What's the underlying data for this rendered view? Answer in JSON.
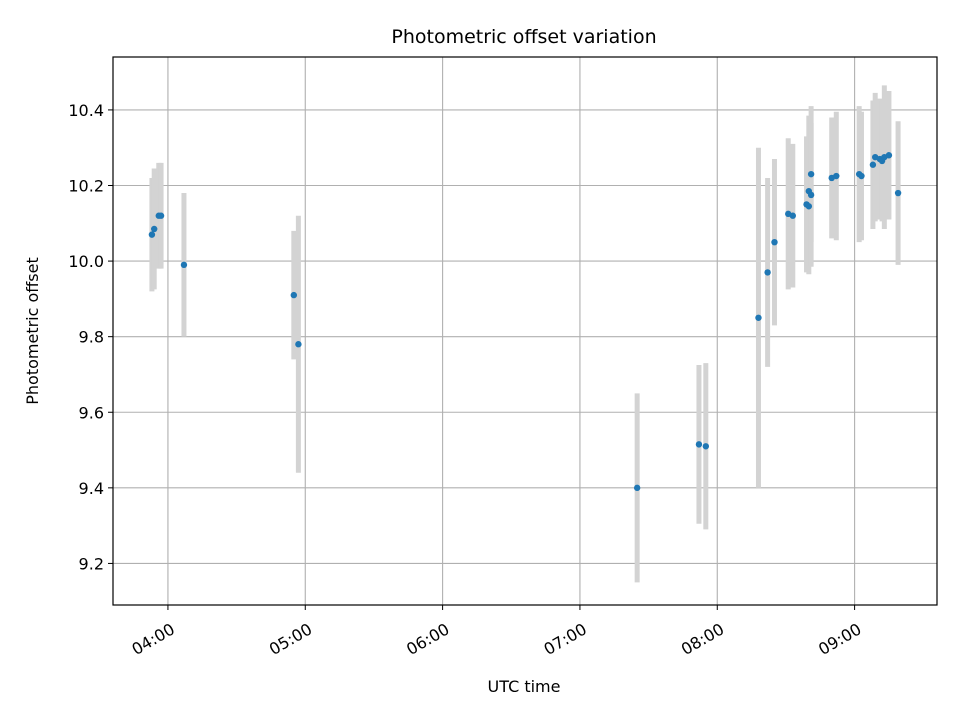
{
  "chart_data": {
    "type": "scatter",
    "title": "Photometric offset variation",
    "xlabel": "UTC time",
    "ylabel": "Photometric offset",
    "x_ticks": [
      {
        "t": "04:00",
        "label": "04:00"
      },
      {
        "t": "05:00",
        "label": "05:00"
      },
      {
        "t": "06:00",
        "label": "06:00"
      },
      {
        "t": "07:00",
        "label": "07:00"
      },
      {
        "t": "08:00",
        "label": "08:00"
      },
      {
        "t": "09:00",
        "label": "09:00"
      }
    ],
    "xlim": [
      "03:36",
      "09:36"
    ],
    "y_ticks": [
      9.2,
      9.4,
      9.6,
      9.8,
      10.0,
      10.2,
      10.4
    ],
    "ylim": [
      9.09,
      10.54
    ],
    "grid": true,
    "colors": {
      "point": "#1f77b4",
      "errorbar": "#d3d3d3",
      "grid": "#b0b0b0"
    },
    "points": [
      {
        "t": "03:53",
        "y": 10.07,
        "err": 0.15
      },
      {
        "t": "03:54",
        "y": 10.085,
        "err": 0.16
      },
      {
        "t": "03:56",
        "y": 10.12,
        "err": 0.14
      },
      {
        "t": "03:57",
        "y": 10.12,
        "err": 0.14
      },
      {
        "t": "04:07",
        "y": 9.99,
        "err": 0.19
      },
      {
        "t": "04:55",
        "y": 9.91,
        "err": 0.17
      },
      {
        "t": "04:57",
        "y": 9.78,
        "err": 0.34
      },
      {
        "t": "07:25",
        "y": 9.4,
        "err": 0.25
      },
      {
        "t": "07:52",
        "y": 9.515,
        "err": 0.21
      },
      {
        "t": "07:55",
        "y": 9.51,
        "err": 0.22
      },
      {
        "t": "08:18",
        "y": 9.85,
        "err": 0.45
      },
      {
        "t": "08:22",
        "y": 9.97,
        "err": 0.25
      },
      {
        "t": "08:25",
        "y": 10.05,
        "err": 0.22
      },
      {
        "t": "08:31",
        "y": 10.125,
        "err": 0.2
      },
      {
        "t": "08:33",
        "y": 10.12,
        "err": 0.19
      },
      {
        "t": "08:39",
        "y": 10.15,
        "err": 0.18
      },
      {
        "t": "08:40",
        "y": 10.145,
        "err": 0.18
      },
      {
        "t": "08:40",
        "y": 10.185,
        "err": 0.2
      },
      {
        "t": "08:41",
        "y": 10.175,
        "err": 0.19
      },
      {
        "t": "08:41",
        "y": 10.23,
        "err": 0.18
      },
      {
        "t": "08:50",
        "y": 10.22,
        "err": 0.16
      },
      {
        "t": "08:52",
        "y": 10.225,
        "err": 0.17
      },
      {
        "t": "09:02",
        "y": 10.23,
        "err": 0.18
      },
      {
        "t": "09:03",
        "y": 10.225,
        "err": 0.17
      },
      {
        "t": "09:08",
        "y": 10.255,
        "err": 0.17
      },
      {
        "t": "09:09",
        "y": 10.275,
        "err": 0.17
      },
      {
        "t": "09:11",
        "y": 10.27,
        "err": 0.16
      },
      {
        "t": "09:12",
        "y": 10.265,
        "err": 0.16
      },
      {
        "t": "09:13",
        "y": 10.275,
        "err": 0.19
      },
      {
        "t": "09:15",
        "y": 10.28,
        "err": 0.17
      },
      {
        "t": "09:19",
        "y": 10.18,
        "err": 0.19
      }
    ]
  }
}
